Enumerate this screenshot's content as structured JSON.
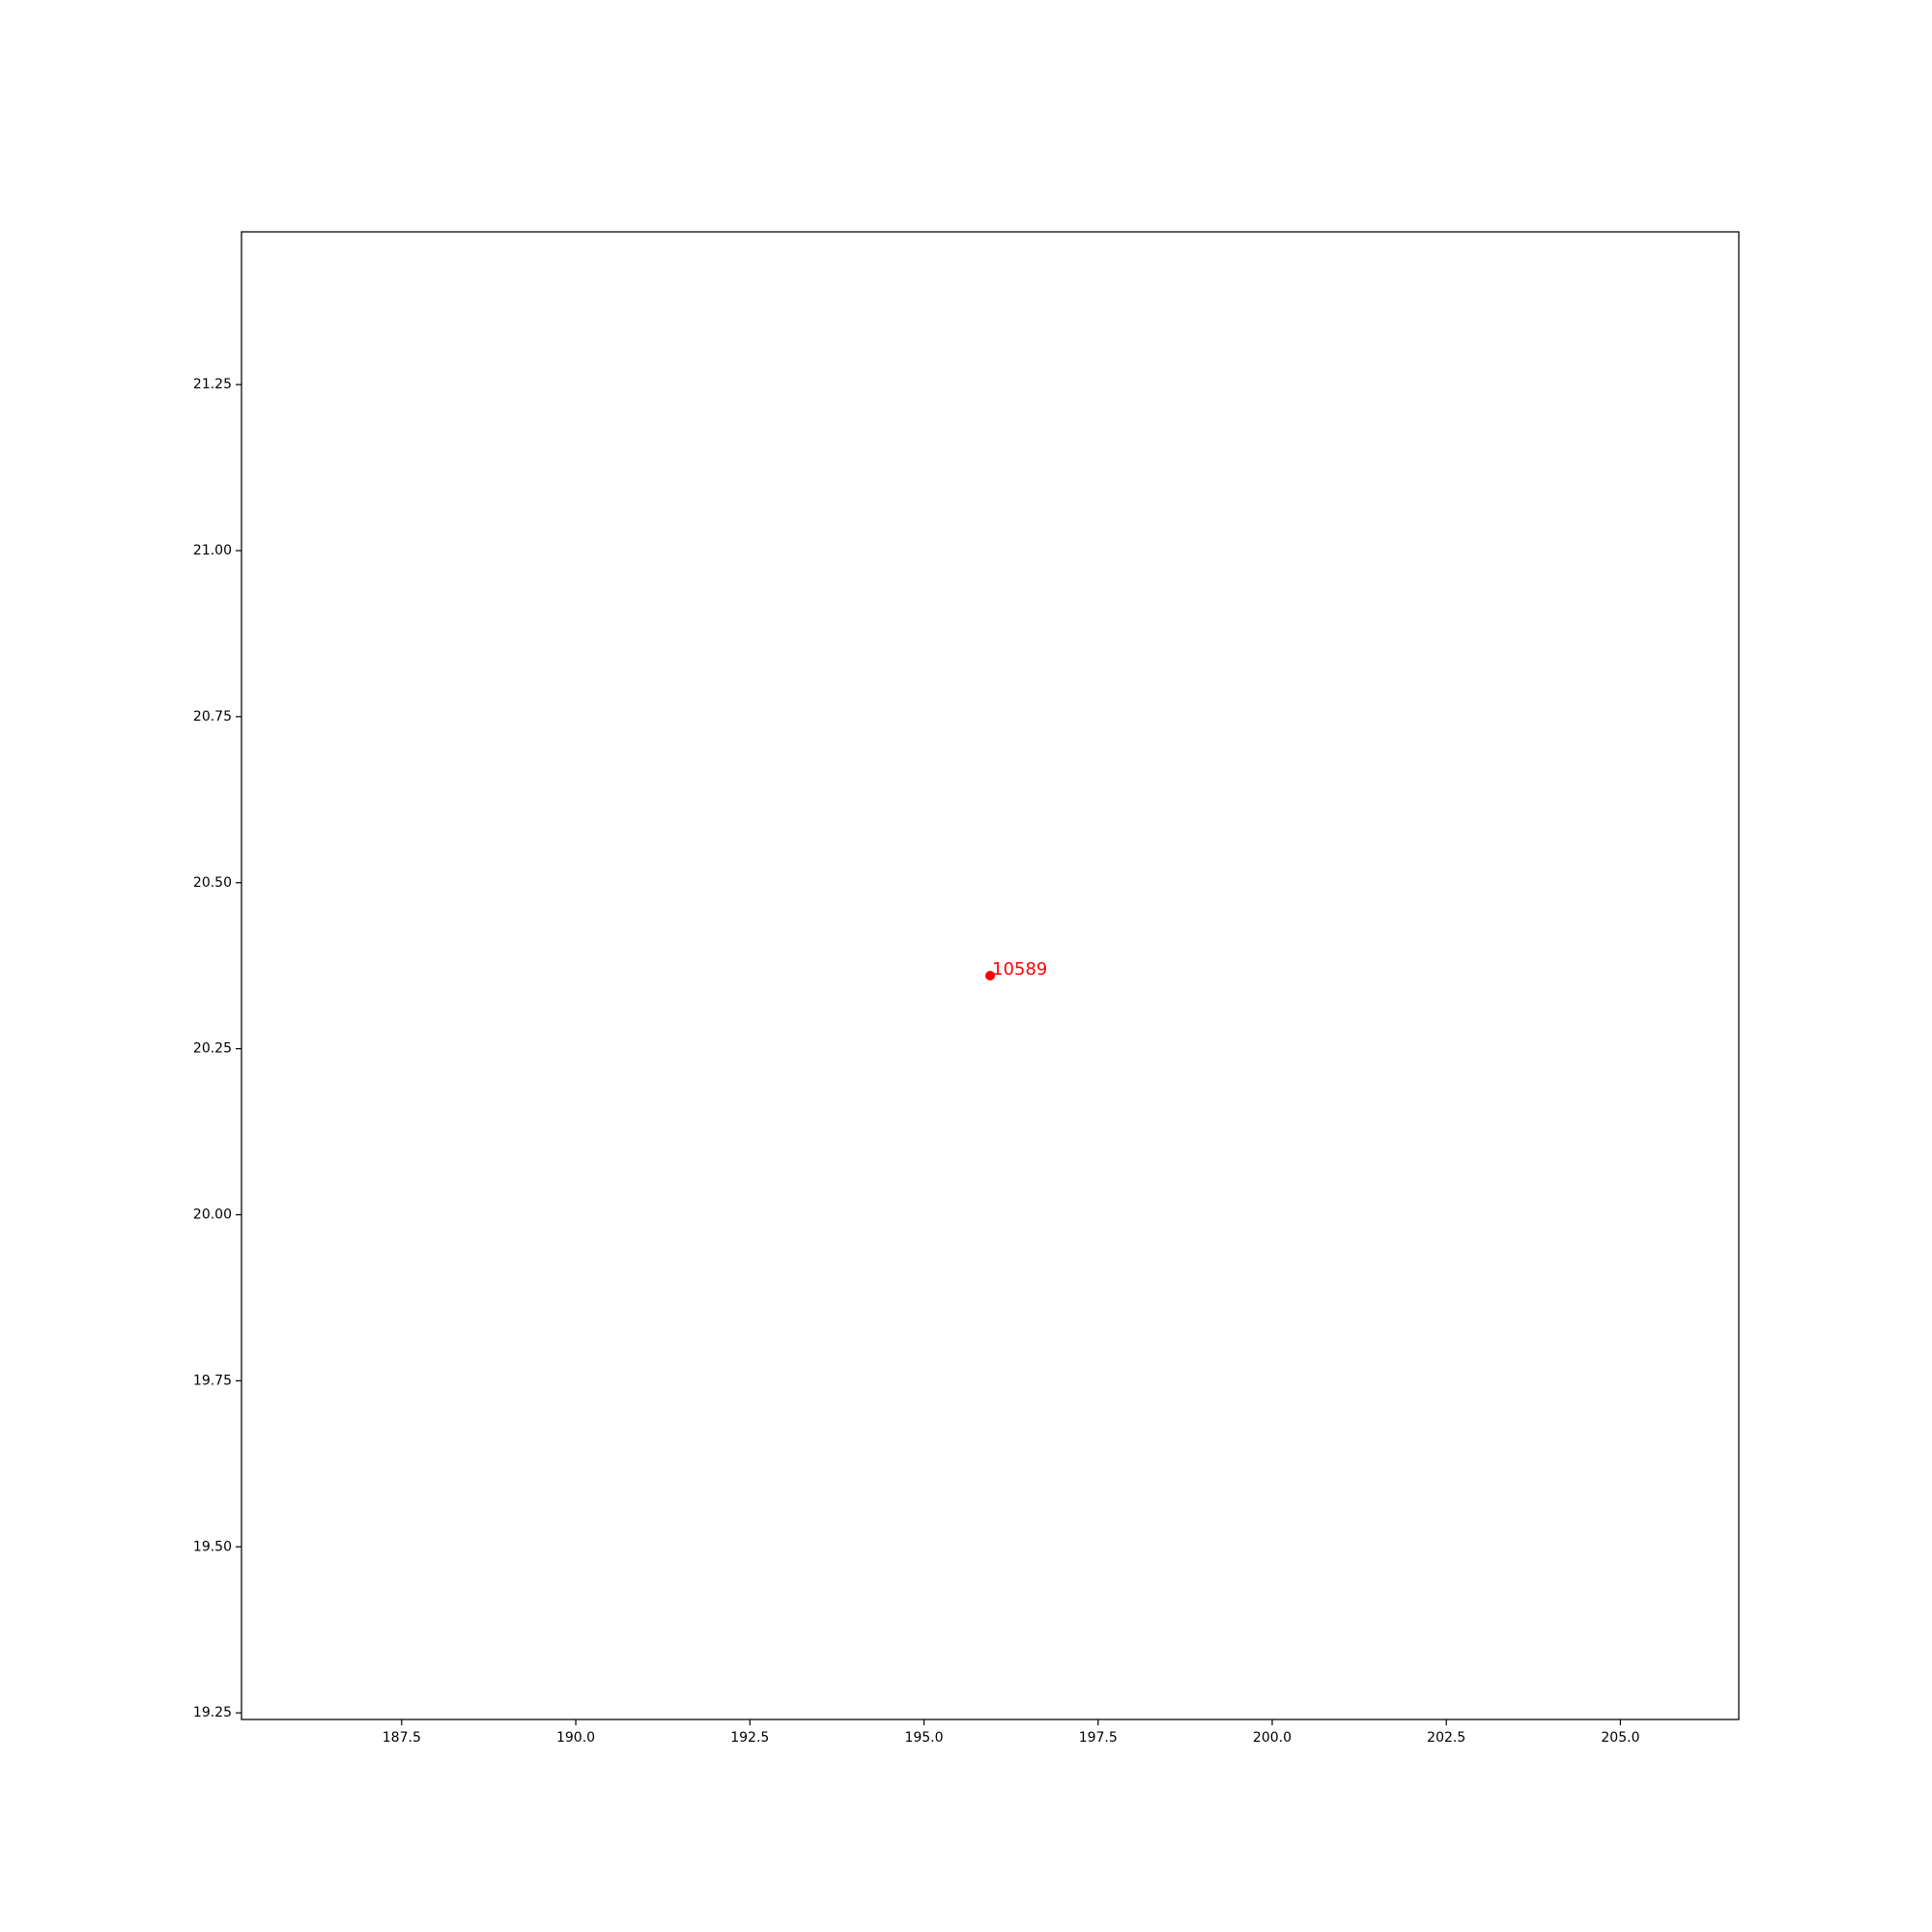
{
  "chart_data": {
    "type": "scatter",
    "title": "",
    "xlabel": "",
    "ylabel": "",
    "xlim": [
      185.2,
      206.7
    ],
    "ylim": [
      19.24,
      21.48
    ],
    "xticks": [
      187.5,
      190.0,
      192.5,
      195.0,
      197.5,
      200.0,
      202.5,
      205.0
    ],
    "xtick_labels": [
      "187.5",
      "190.0",
      "192.5",
      "195.0",
      "197.5",
      "200.0",
      "202.5",
      "205.0"
    ],
    "yticks": [
      19.25,
      19.5,
      19.75,
      20.0,
      20.25,
      20.5,
      20.75,
      21.0,
      21.25
    ],
    "ytick_labels": [
      "19.25",
      "19.50",
      "19.75",
      "20.00",
      "20.25",
      "20.50",
      "20.75",
      "21.00",
      "21.25"
    ],
    "grid": false,
    "legend": "none",
    "points": [
      {
        "x": 195.95,
        "y": 20.36,
        "label": "10589",
        "color": "#ff0000"
      }
    ]
  }
}
